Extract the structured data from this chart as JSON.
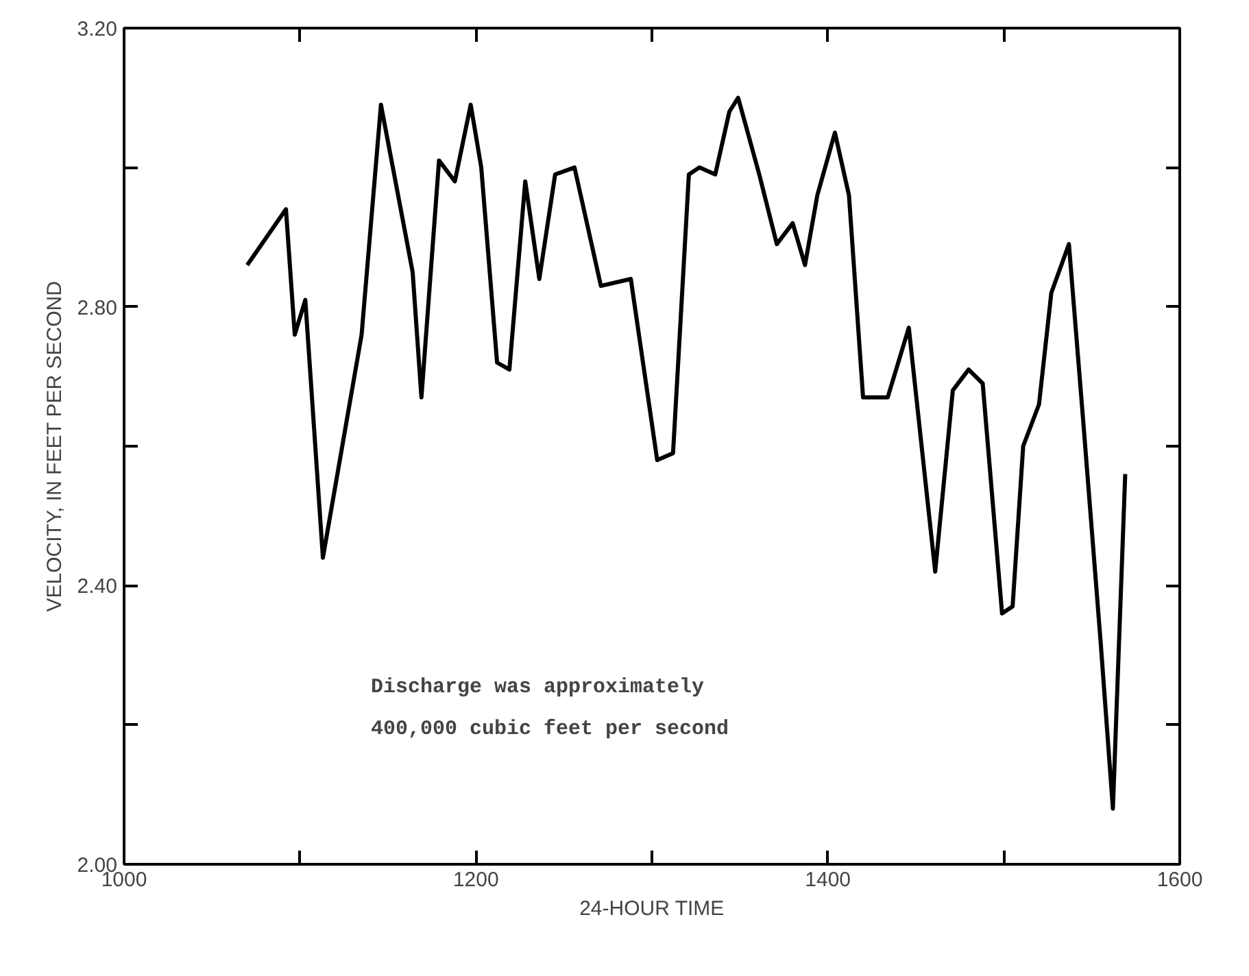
{
  "chart_data": {
    "type": "line",
    "xlabel": "24-HOUR TIME",
    "ylabel": "VELOCITY, IN FEET PER SECOND",
    "annotations": [
      "Discharge was approximately\n400,000 cubic feet per second"
    ],
    "x": [
      1070,
      1092,
      1097,
      1103,
      1113,
      1135,
      1146,
      1164,
      1169,
      1179,
      1188,
      1197,
      1203,
      1212,
      1219,
      1228,
      1236,
      1245,
      1256,
      1271,
      1288,
      1303,
      1312,
      1321,
      1327,
      1336,
      1344,
      1349,
      1361,
      1371,
      1380,
      1387,
      1394,
      1404,
      1412,
      1420,
      1434,
      1446,
      1461,
      1471,
      1480,
      1488,
      1499,
      1505,
      1511,
      1520,
      1527,
      1537,
      1545,
      1555,
      1562,
      1569
    ],
    "series": [
      {
        "color": "#000000",
        "values": [
          2.86,
          2.94,
          2.76,
          2.81,
          2.44,
          2.76,
          3.09,
          2.85,
          2.67,
          3.01,
          2.98,
          3.09,
          3.0,
          2.72,
          2.71,
          2.98,
          2.84,
          2.99,
          3.0,
          2.83,
          2.84,
          2.58,
          2.59,
          2.99,
          3.0,
          2.99,
          3.08,
          3.1,
          2.99,
          2.89,
          2.92,
          2.86,
          2.96,
          3.05,
          2.96,
          2.67,
          2.67,
          2.77,
          2.42,
          2.68,
          2.71,
          2.69,
          2.36,
          2.37,
          2.6,
          2.66,
          2.82,
          2.89,
          2.64,
          2.32,
          2.08,
          2.56
        ]
      }
    ],
    "xlim": [
      1000,
      1600
    ],
    "ylim": [
      2.0,
      3.2
    ],
    "xticks": [
      1000,
      {
        "value": 1100,
        "label": null
      },
      1200,
      {
        "value": 1300,
        "label": null
      },
      1400,
      {
        "value": 1500,
        "label": null
      },
      1600
    ],
    "yticks": [
      {
        "value": 2.0,
        "label": "2.00"
      },
      {
        "value": 2.2,
        "label": null
      },
      {
        "value": 2.4,
        "label": "2.40"
      },
      {
        "value": 2.6,
        "label": null
      },
      {
        "value": 2.8,
        "label": "2.80"
      },
      {
        "value": 3.0,
        "label": null
      },
      {
        "value": 3.2,
        "label": "3.20"
      }
    ],
    "grid": false,
    "marker": "none",
    "line_style": "solid"
  }
}
